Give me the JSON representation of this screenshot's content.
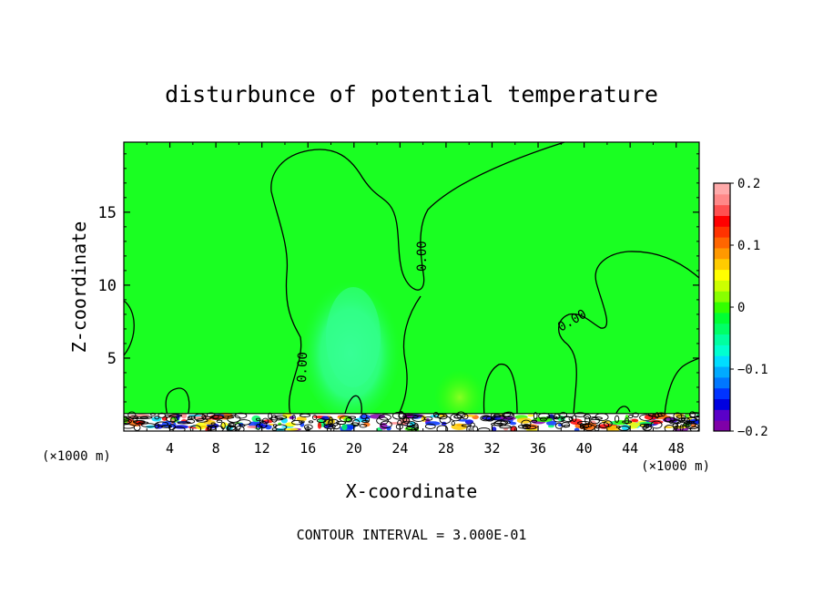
{
  "chart_data": {
    "type": "heatmap",
    "title": "disturbunce of potential temperature",
    "xlabel": "X-coordinate",
    "ylabel": "Z-coordinate",
    "x_unit": "(×1000 m)",
    "y_unit": "(×1000 m)",
    "xlim": [
      0,
      50
    ],
    "ylim": [
      0,
      19.8
    ],
    "x_ticks": [
      4,
      8,
      12,
      16,
      20,
      24,
      28,
      32,
      36,
      40,
      44,
      48
    ],
    "y_ticks": [
      5,
      10,
      15
    ],
    "contour_interval_text": "CONTOUR INTERVAL = 3.000E-01",
    "contour_label": "0.00",
    "colorbar": {
      "range": [
        -0.2,
        0.2
      ],
      "tick_values": [
        0.2,
        0.1,
        0,
        -0.1,
        -0.2
      ],
      "tick_labels": [
        "0.2",
        "0.1",
        "0",
        "−0.1",
        "−0.2"
      ],
      "colors": [
        "#7f00a8",
        "#5a00c8",
        "#0000e0",
        "#0033ff",
        "#0077ff",
        "#00aaff",
        "#00ddff",
        "#00ffd0",
        "#00ffa0",
        "#00ff66",
        "#00ff33",
        "#33ff00",
        "#88ff00",
        "#ccff00",
        "#ffff00",
        "#ffcc00",
        "#ff9900",
        "#ff6600",
        "#ff3300",
        "#ff0000",
        "#ff5050",
        "#ff8888",
        "#ffaaaa"
      ]
    },
    "background_value": 0.0,
    "features": [
      {
        "name": "cool anomaly",
        "x_range": [
          16,
          24
        ],
        "z_range": [
          0,
          10
        ],
        "value": -0.03
      },
      {
        "name": "warm plume",
        "x_range": [
          26,
          30
        ],
        "z_range": [
          0,
          4
        ],
        "value": 0.02
      },
      {
        "name": "boundary layer turbulence",
        "x_range": [
          0,
          50
        ],
        "z_range": [
          0,
          1.2
        ],
        "value_range": [
          -0.2,
          0.2
        ]
      }
    ]
  }
}
